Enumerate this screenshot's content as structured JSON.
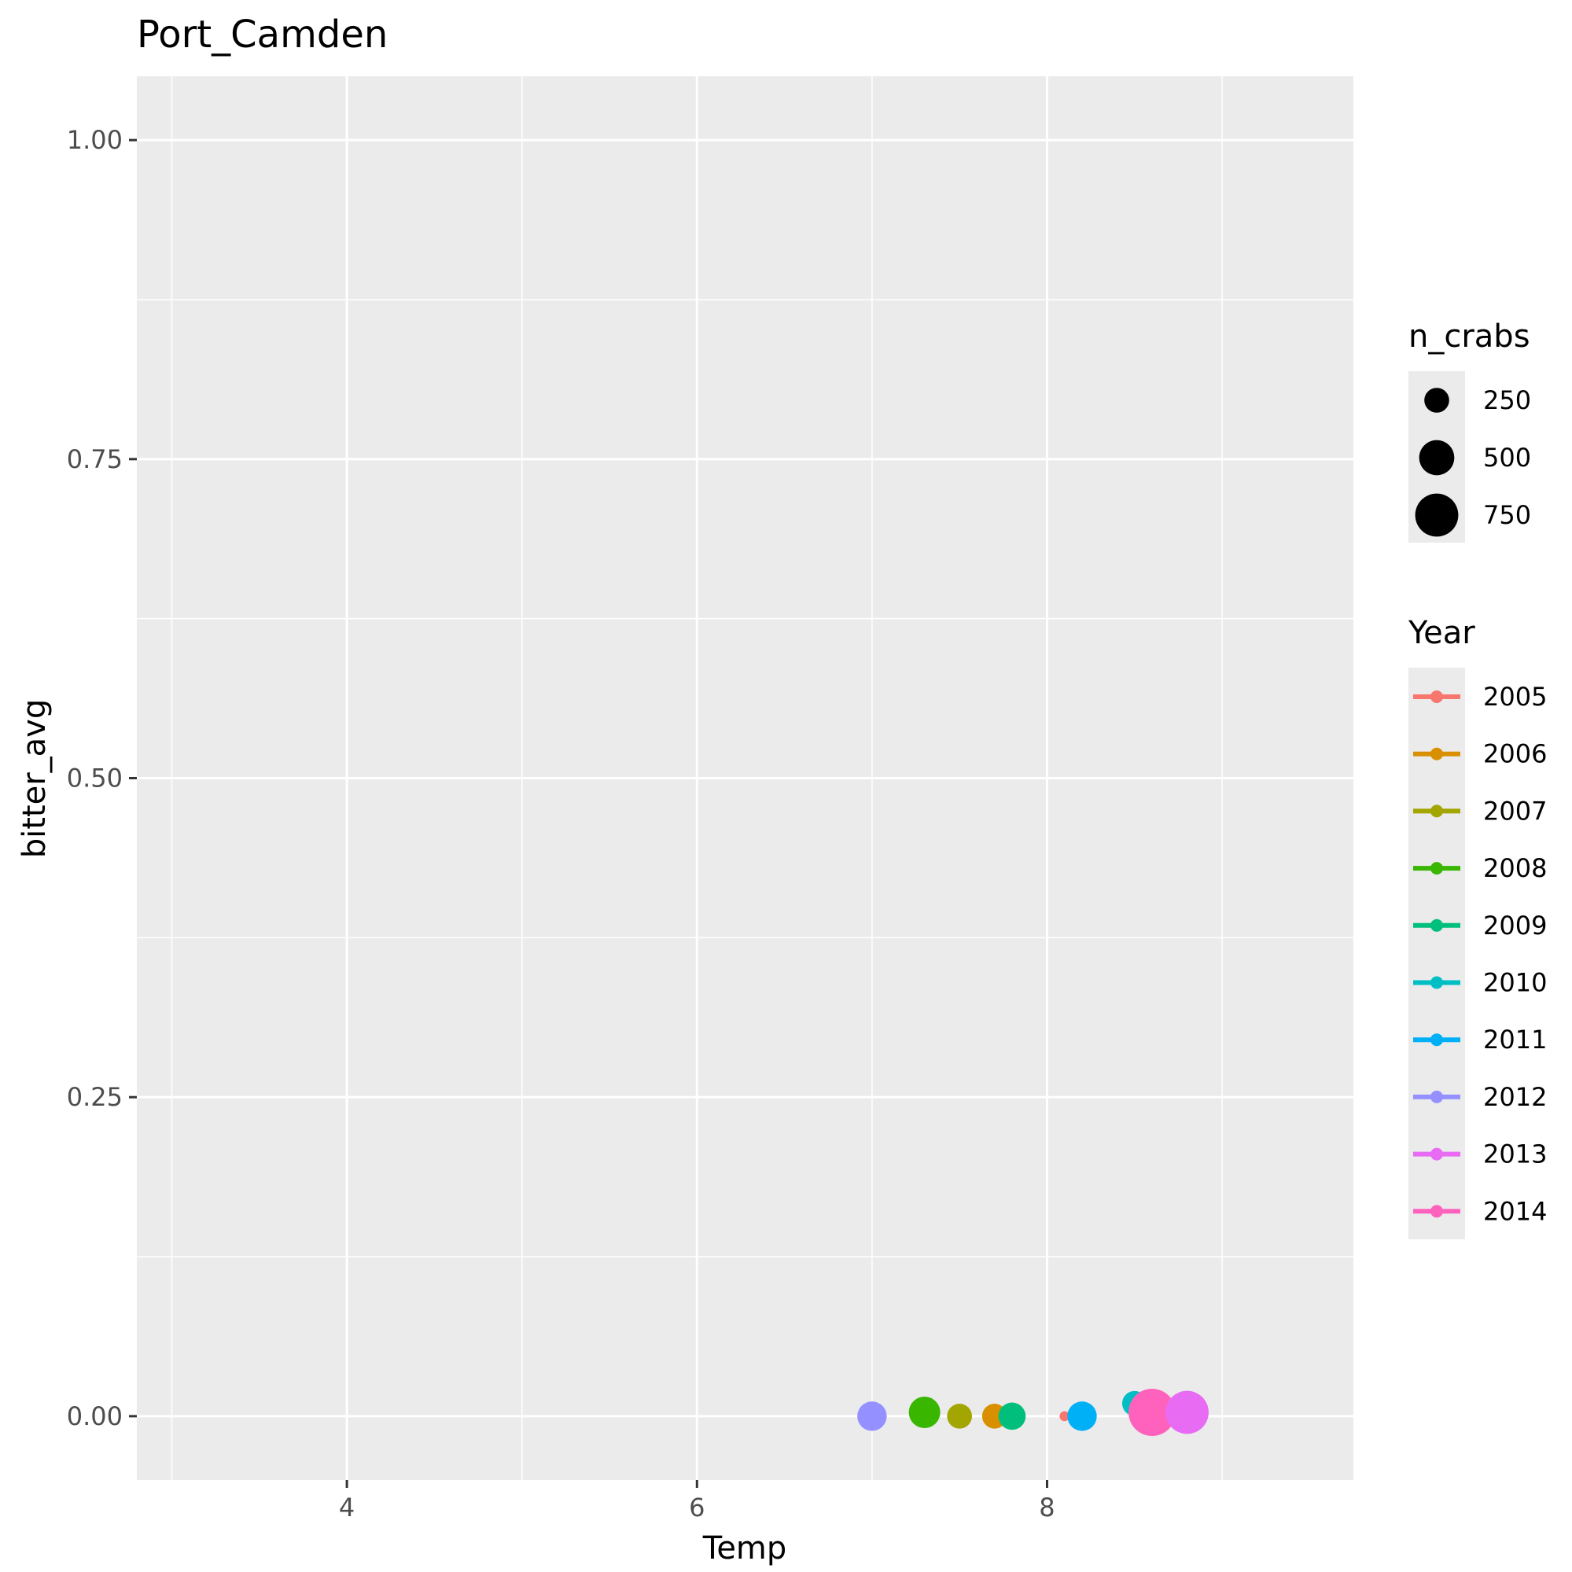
{
  "chart_data": {
    "type": "scatter",
    "title": "Port_Camden",
    "xlabel": "Temp",
    "ylabel": "bitter_avg",
    "xlim": [
      2.8,
      9.75
    ],
    "ylim": [
      -0.05,
      1.05
    ],
    "x_ticks": [
      4,
      6,
      8
    ],
    "x_tick_labels": [
      "4",
      "6",
      "8"
    ],
    "x_minor_ticks": [
      3,
      5,
      7,
      9
    ],
    "y_ticks": [
      0,
      0.25,
      0.5,
      0.75,
      1.0
    ],
    "y_tick_labels": [
      "0.00",
      "0.25",
      "0.50",
      "0.75",
      "1.00"
    ],
    "y_minor_ticks": [
      0.125,
      0.375,
      0.625,
      0.875
    ],
    "grid": true,
    "legend_position": "right",
    "size_legend": {
      "title": "n_crabs",
      "breaks": [
        250,
        500,
        750
      ],
      "labels": [
        "250",
        "500",
        "750"
      ]
    },
    "color_legend": {
      "title": "Year",
      "entries": [
        {
          "label": "2005",
          "color": "#F8766D"
        },
        {
          "label": "2006",
          "color": "#D89000"
        },
        {
          "label": "2007",
          "color": "#A3A500"
        },
        {
          "label": "2008",
          "color": "#39B600"
        },
        {
          "label": "2009",
          "color": "#00BF7D"
        },
        {
          "label": "2010",
          "color": "#00BFC4"
        },
        {
          "label": "2011",
          "color": "#00B0F6"
        },
        {
          "label": "2012",
          "color": "#9590FF"
        },
        {
          "label": "2013",
          "color": "#E76BF3"
        },
        {
          "label": "2014",
          "color": "#FF62BC"
        }
      ]
    },
    "points": [
      {
        "year": "2012",
        "x": 7.0,
        "y": 0.0,
        "n_crabs": 350,
        "color": "#9590FF"
      },
      {
        "year": "2008",
        "x": 7.3,
        "y": 0.003,
        "n_crabs": 400,
        "color": "#39B600"
      },
      {
        "year": "2007",
        "x": 7.5,
        "y": 0.0,
        "n_crabs": 250,
        "color": "#A3A500"
      },
      {
        "year": "2006",
        "x": 7.7,
        "y": 0.0,
        "n_crabs": 250,
        "color": "#D89000"
      },
      {
        "year": "2009",
        "x": 7.8,
        "y": 0.0,
        "n_crabs": 300,
        "color": "#00BF7D"
      },
      {
        "year": "2005",
        "x": 8.1,
        "y": 0.0,
        "n_crabs": 40,
        "color": "#F8766D"
      },
      {
        "year": "2011",
        "x": 8.2,
        "y": 0.0,
        "n_crabs": 350,
        "color": "#00B0F6"
      },
      {
        "year": "2010",
        "x": 8.5,
        "y": 0.01,
        "n_crabs": 250,
        "color": "#00BFC4"
      },
      {
        "year": "2014",
        "x": 8.6,
        "y": 0.003,
        "n_crabs": 900,
        "color": "#FF62BC"
      },
      {
        "year": "2013",
        "x": 8.8,
        "y": 0.003,
        "n_crabs": 750,
        "color": "#E76BF3"
      }
    ]
  }
}
